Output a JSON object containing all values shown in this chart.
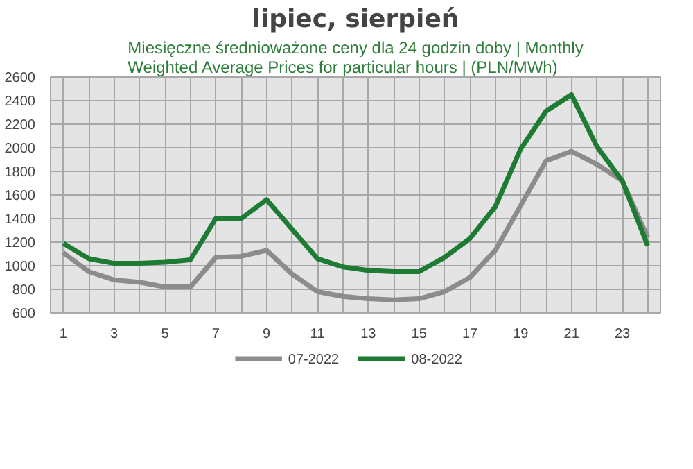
{
  "chart_data": {
    "type": "line",
    "title": "lipiec, sierpień",
    "subtitle": "Miesięczne średnioważone ceny dla 24 godzin doby | Monthly Weighted Average Prices for particular hours | (PLN/MWh)",
    "x": [
      1,
      2,
      3,
      4,
      5,
      6,
      7,
      8,
      9,
      10,
      11,
      12,
      13,
      14,
      15,
      16,
      17,
      18,
      19,
      20,
      21,
      22,
      23,
      24
    ],
    "series": [
      {
        "name": "07-2022",
        "color": "#8c8c8c",
        "values": [
          1110,
          950,
          880,
          860,
          820,
          820,
          1070,
          1080,
          1130,
          930,
          780,
          740,
          720,
          710,
          720,
          780,
          900,
          1130,
          1510,
          1890,
          1970,
          1860,
          1720,
          1240
        ]
      },
      {
        "name": "08-2022",
        "color": "#1e7b34",
        "values": [
          1190,
          1060,
          1020,
          1020,
          1030,
          1050,
          1400,
          1400,
          1560,
          1310,
          1060,
          990,
          960,
          950,
          950,
          1070,
          1230,
          1500,
          1990,
          2310,
          2450,
          2010,
          1720,
          1170
        ]
      }
    ],
    "xlim": [
      0.5,
      24.5
    ],
    "xticks": [
      1,
      {
        "value": 2,
        "label": null
      },
      3,
      {
        "value": 4,
        "label": null
      },
      5,
      {
        "value": 6,
        "label": null
      },
      7,
      {
        "value": 8,
        "label": null
      },
      9,
      {
        "value": 10,
        "label": null
      },
      11,
      {
        "value": 12,
        "label": null
      },
      13,
      {
        "value": 14,
        "label": null
      },
      15,
      {
        "value": 16,
        "label": null
      },
      17,
      {
        "value": 18,
        "label": null
      },
      19,
      {
        "value": 20,
        "label": null
      },
      21,
      {
        "value": 22,
        "label": null
      },
      23,
      {
        "value": 24,
        "label": null
      }
    ],
    "ylim": [
      600,
      2600
    ],
    "yticks": [
      600,
      800,
      1000,
      1200,
      1400,
      1600,
      1800,
      2000,
      2200,
      2400,
      2600
    ],
    "grid": true,
    "legend": "bottom",
    "marker": "none",
    "line_style": "solid"
  }
}
